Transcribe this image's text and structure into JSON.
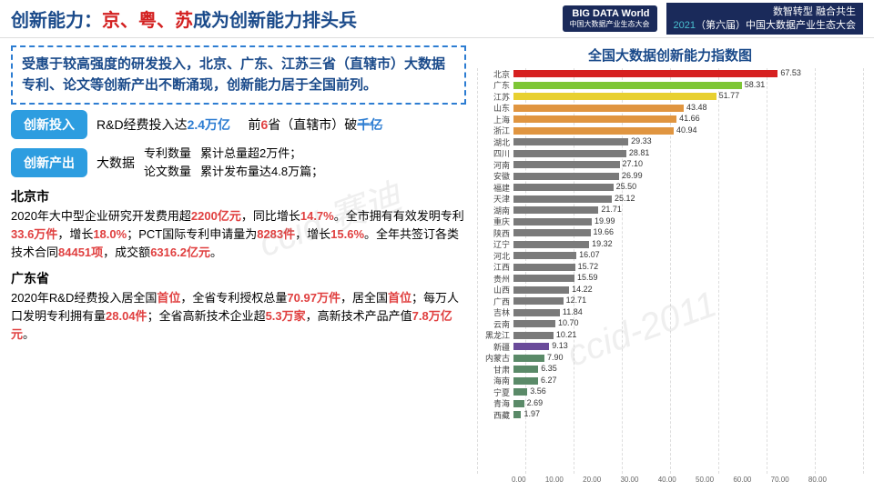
{
  "header": {
    "title_blue": "创新能力：",
    "title_red": "京、粤、苏",
    "title_rest": "成为创新能力排头兵",
    "logo_line1": "BIG DATA World",
    "logo_line2": "中国大数据产业生态大会",
    "conf_line1": "数智转型 融合共生",
    "conf_year": "2021",
    "conf_line2": "（第六届）中国大数据产业生态大会"
  },
  "summary": "受惠于较高强度的研发投入，北京、广东、江苏三省（直辖市）大数据专利、论文等创新产出不断涌现，创新能力居于全国前列。",
  "row1": {
    "tag": "创新投入",
    "t1a": "R&D经费投入达",
    "t1b": "2.4万亿",
    "t2a": "前",
    "t2b": "6",
    "t2c": "省（直辖市）破",
    "t2d": "千亿"
  },
  "row2": {
    "tag": "创新产出",
    "prefix": "大数据",
    "l1a": "专利数量",
    "l1b": "累计总量超2万件；",
    "l2a": "论文数量",
    "l2b": "累计发布量达4.8万篇；"
  },
  "beijing": {
    "title": "北京市",
    "body": "2020年大中型企业研究开发费用超<span class='hl'>2200亿元</span>，同比增长<span class='hl'>14.7%</span>。全市拥有有效发明专利<span class='hl'>33.6万件</span>，增长<span class='hl'>18.0%</span>；PCT国际专利申请量为<span class='hl'>8283件</span>，增长<span class='hl'>15.6%</span>。全年共签订各类技术合同<span class='hl'>84451项</span>，成交额<span class='hl'>6316.2亿元</span>。"
  },
  "guangdong": {
    "title": "广东省",
    "body": "2020年R&D经费投入居全国<span class='hl'>首位</span>，全省专利授权总量<span class='hl'>70.97万件</span>，居全国<span class='hl'>首位</span>；每万人口发明专利拥有量<span class='hl'>28.04件</span>；全省高新技术企业超<span class='hl'>5.3万家</span>，高新技术产品产值<span class='hl'>7.8万亿元</span>。"
  },
  "chart": {
    "title": "全国大数据创新能力指数图",
    "xmax": 80,
    "xticks": [
      "0.00",
      "10.00",
      "20.00",
      "30.00",
      "40.00",
      "50.00",
      "60.00",
      "70.00",
      "80.00"
    ],
    "data": [
      {
        "name": "北京",
        "value": 67.53,
        "color": "#d62020"
      },
      {
        "name": "广东",
        "value": 58.31,
        "color": "#7ec636"
      },
      {
        "name": "江苏",
        "value": 51.77,
        "color": "#e8d030"
      },
      {
        "name": "山东",
        "value": 43.48,
        "color": "#e09540"
      },
      {
        "name": "上海",
        "value": 41.66,
        "color": "#e09540"
      },
      {
        "name": "浙江",
        "value": 40.94,
        "color": "#e09540"
      },
      {
        "name": "湖北",
        "value": 29.33,
        "color": "#7a7a7a"
      },
      {
        "name": "四川",
        "value": 28.81,
        "color": "#7a7a7a"
      },
      {
        "name": "河南",
        "value": 27.1,
        "color": "#7a7a7a"
      },
      {
        "name": "安徽",
        "value": 26.99,
        "color": "#7a7a7a"
      },
      {
        "name": "福建",
        "value": 25.5,
        "color": "#7a7a7a"
      },
      {
        "name": "天津",
        "value": 25.12,
        "color": "#7a7a7a"
      },
      {
        "name": "湖南",
        "value": 21.71,
        "color": "#7a7a7a"
      },
      {
        "name": "重庆",
        "value": 19.99,
        "color": "#7a7a7a"
      },
      {
        "name": "陕西",
        "value": 19.66,
        "color": "#7a7a7a"
      },
      {
        "name": "辽宁",
        "value": 19.32,
        "color": "#7a7a7a"
      },
      {
        "name": "河北",
        "value": 16.07,
        "color": "#7a7a7a"
      },
      {
        "name": "江西",
        "value": 15.72,
        "color": "#7a7a7a"
      },
      {
        "name": "贵州",
        "value": 15.59,
        "color": "#7a7a7a"
      },
      {
        "name": "山西",
        "value": 14.22,
        "color": "#7a7a7a"
      },
      {
        "name": "广西",
        "value": 12.71,
        "color": "#7a7a7a"
      },
      {
        "name": "吉林",
        "value": 11.84,
        "color": "#7a7a7a"
      },
      {
        "name": "云南",
        "value": 10.7,
        "color": "#7a7a7a"
      },
      {
        "name": "黑龙江",
        "value": 10.21,
        "color": "#7a7a7a"
      },
      {
        "name": "新疆",
        "value": 9.13,
        "color": "#6a4b9a"
      },
      {
        "name": "内蒙古",
        "value": 7.9,
        "color": "#5a8a68"
      },
      {
        "name": "甘肃",
        "value": 6.35,
        "color": "#5a8a68"
      },
      {
        "name": "海南",
        "value": 6.27,
        "color": "#5a8a68"
      },
      {
        "name": "宁夏",
        "value": 3.56,
        "color": "#5a8a68"
      },
      {
        "name": "青海",
        "value": 2.69,
        "color": "#5a8a68"
      },
      {
        "name": "西藏",
        "value": 1.97,
        "color": "#5a8a68"
      }
    ]
  },
  "watermarks": [
    "ccid 赛迪",
    "ccid-2011"
  ]
}
